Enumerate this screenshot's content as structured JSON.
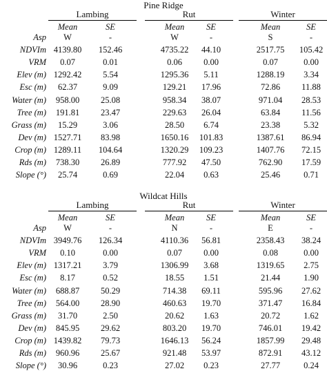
{
  "tables": [
    {
      "title": "Pine Ridge",
      "groups": [
        "Lambing",
        "Rut",
        "Winter"
      ],
      "subheaders": [
        "Mean",
        "SE"
      ],
      "rows": [
        {
          "label": "Asp",
          "values": [
            "W",
            "-",
            "W",
            "-",
            "S",
            "-"
          ]
        },
        {
          "label": "NDVIm",
          "values": [
            "4139.80",
            "152.46",
            "4735.22",
            "44.10",
            "2517.75",
            "105.42"
          ]
        },
        {
          "label": "VRM",
          "values": [
            "0.07",
            "0.01",
            "0.06",
            "0.00",
            "0.07",
            "0.00"
          ]
        },
        {
          "label": "Elev (m)",
          "values": [
            "1292.42",
            "5.54",
            "1295.36",
            "5.11",
            "1288.19",
            "3.34"
          ]
        },
        {
          "label": "Esc (m)",
          "values": [
            "62.37",
            "9.09",
            "129.21",
            "17.96",
            "72.86",
            "11.88"
          ]
        },
        {
          "label": "Water (m)",
          "values": [
            "958.00",
            "25.08",
            "958.34",
            "38.07",
            "971.04",
            "28.53"
          ]
        },
        {
          "label": "Tree (m)",
          "values": [
            "191.81",
            "23.47",
            "229.63",
            "26.04",
            "63.84",
            "11.56"
          ]
        },
        {
          "label": "Grass (m)",
          "values": [
            "15.29",
            "3.06",
            "28.50",
            "6.74",
            "23.38",
            "5.32"
          ]
        },
        {
          "label": "Dev (m)",
          "values": [
            "1527.71",
            "83.98",
            "1650.16",
            "101.83",
            "1387.61",
            "86.94"
          ]
        },
        {
          "label": "Crop (m)",
          "values": [
            "1289.11",
            "104.64",
            "1320.29",
            "109.23",
            "1407.76",
            "72.15"
          ]
        },
        {
          "label": "Rds (m)",
          "values": [
            "738.30",
            "26.89",
            "777.92",
            "47.50",
            "762.90",
            "17.59"
          ]
        },
        {
          "label": "Slope (°)",
          "values": [
            "25.74",
            "0.69",
            "22.04",
            "0.63",
            "25.46",
            "0.71"
          ]
        }
      ]
    },
    {
      "title": "Wildcat Hills",
      "groups": [
        "Lambing",
        "Rut",
        "Winter"
      ],
      "subheaders": [
        "Mean",
        "SE"
      ],
      "rows": [
        {
          "label": "Asp",
          "values": [
            "W",
            "-",
            "N",
            "-",
            "E",
            "-"
          ]
        },
        {
          "label": "NDVIm",
          "values": [
            "3949.76",
            "126.34",
            "4110.36",
            "56.81",
            "2358.43",
            "38.24"
          ]
        },
        {
          "label": "VRM",
          "values": [
            "0.10",
            "0.00",
            "0.07",
            "0.00",
            "0.08",
            "0.00"
          ]
        },
        {
          "label": "Elev (m)",
          "values": [
            "1317.21",
            "3.79",
            "1306.99",
            "3.68",
            "1319.65",
            "2.75"
          ]
        },
        {
          "label": "Esc (m)",
          "values": [
            "8.17",
            "0.52",
            "18.55",
            "1.51",
            "21.44",
            "1.90"
          ]
        },
        {
          "label": "Water (m)",
          "values": [
            "688.87",
            "50.29",
            "714.38",
            "69.11",
            "595.96",
            "27.62"
          ]
        },
        {
          "label": "Tree (m)",
          "values": [
            "564.00",
            "28.90",
            "460.63",
            "19.70",
            "371.47",
            "16.84"
          ]
        },
        {
          "label": "Grass (m)",
          "values": [
            "31.70",
            "2.50",
            "20.62",
            "1.63",
            "20.72",
            "1.62"
          ]
        },
        {
          "label": "Dev (m)",
          "values": [
            "845.95",
            "29.62",
            "803.20",
            "19.70",
            "746.01",
            "19.42"
          ]
        },
        {
          "label": "Crop (m)",
          "values": [
            "1439.82",
            "79.73",
            "1646.13",
            "56.24",
            "1857.99",
            "29.48"
          ]
        },
        {
          "label": "Rds (m)",
          "values": [
            "960.96",
            "25.67",
            "921.48",
            "53.97",
            "872.91",
            "43.12"
          ]
        },
        {
          "label": "Slope (°)",
          "values": [
            "30.96",
            "0.23",
            "27.02",
            "0.23",
            "27.77",
            "0.24"
          ]
        }
      ]
    }
  ]
}
